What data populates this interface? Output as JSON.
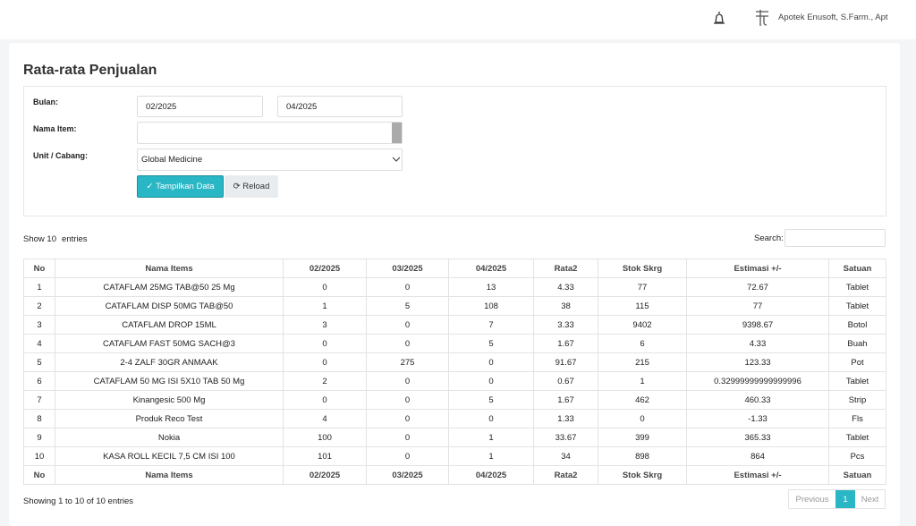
{
  "topbar": {
    "user": "Apotek Enusoft, S.Farm., Apt"
  },
  "page": {
    "title": "Rata-rata Penjualan"
  },
  "form": {
    "bulan_label": "Bulan:",
    "bulan_from": "02/2025",
    "bulan_to": "04/2025",
    "item_label": "Nama Item:",
    "unit_label": "Unit / Cabang:",
    "unit_value": "Global Medicine",
    "submit": "Tampilkan Data",
    "reload": "Reload"
  },
  "table": {
    "show": "Show",
    "length": "10",
    "entries": "entries",
    "search": "Search:",
    "headers": [
      "No",
      "Nama Items",
      "02/2025",
      "03/2025",
      "04/2025",
      "Rata2",
      "Stok Skrg",
      "Estimasi +/-",
      "Satuan"
    ],
    "rows": [
      [
        "1",
        "CATAFLAM 25MG TAB@50 25 Mg",
        "0",
        "0",
        "13",
        "4.33",
        "77",
        "72.67",
        "Tablet"
      ],
      [
        "2",
        "CATAFLAM DISP 50MG TAB@50",
        "1",
        "5",
        "108",
        "38",
        "115",
        "77",
        "Tablet"
      ],
      [
        "3",
        "CATAFLAM DROP 15ML",
        "3",
        "0",
        "7",
        "3.33",
        "9402",
        "9398.67",
        "Botol"
      ],
      [
        "4",
        "CATAFLAM FAST 50MG SACH@3",
        "0",
        "0",
        "5",
        "1.67",
        "6",
        "4.33",
        "Buah"
      ],
      [
        "5",
        "2-4 ZALF 30GR ANMAAK",
        "0",
        "275",
        "0",
        "91.67",
        "215",
        "123.33",
        "Pot"
      ],
      [
        "6",
        "CATAFLAM 50 MG ISI 5X10 TAB 50 Mg",
        "2",
        "0",
        "0",
        "0.67",
        "1",
        "0.32999999999999996",
        "Tablet"
      ],
      [
        "7",
        "Kinangesic 500 Mg",
        "0",
        "0",
        "5",
        "1.67",
        "462",
        "460.33",
        "Strip"
      ],
      [
        "8",
        "Produk Reco Test",
        "4",
        "0",
        "0",
        "1.33",
        "0",
        "-1.33",
        "Fls"
      ],
      [
        "9",
        "Nokia",
        "100",
        "0",
        "1",
        "33.67",
        "399",
        "365.33",
        "Tablet"
      ],
      [
        "10",
        "KASA ROLL KECIL 7,5 CM ISI 100",
        "101",
        "0",
        "1",
        "34",
        "898",
        "864",
        "Pcs"
      ]
    ],
    "info": "Showing 1 to 10 of 10 entries",
    "pagination": {
      "previous": "Previous",
      "page": "1",
      "next": "Next"
    }
  }
}
